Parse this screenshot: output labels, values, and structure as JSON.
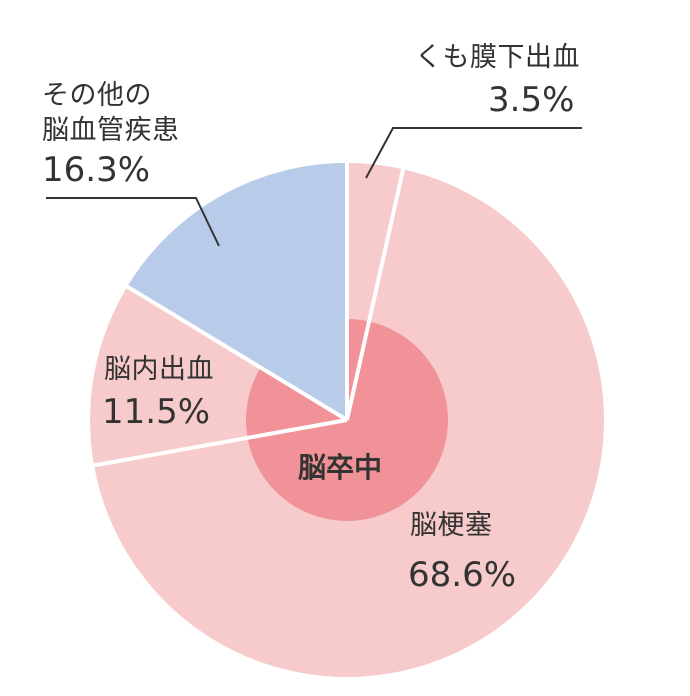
{
  "chart_data": {
    "type": "pie",
    "title": "",
    "inner_label": "脳卒中",
    "start_angle_deg": 0,
    "direction": "clockwise",
    "slices": [
      {
        "label": "くも膜下出血",
        "value": 3.5,
        "display": "3.5%",
        "color": "#f7cbcb"
      },
      {
        "label": "脳梗塞",
        "value": 68.6,
        "display": "68.6%",
        "color": "#f7cbcb"
      },
      {
        "label": "脳内出血",
        "value": 11.5,
        "display": "11.5%",
        "color": "#f7cbcb"
      },
      {
        "label": "その他の脳血管疾患",
        "value": 16.3,
        "display": "16.3%",
        "color": "#b8cce9"
      }
    ],
    "inner_circle_color": "#f09297"
  },
  "labels": {
    "sah_name": "くも膜下出血",
    "sah_value": "3.5%",
    "other_name_line1": "その他の",
    "other_name_line2": "脳血管疾患",
    "other_value": "16.3%",
    "ich_name": "脳内出血",
    "ich_value": "11.5%",
    "infarct_name": "脳梗塞",
    "infarct_value": "68.6%",
    "center": "脳卒中"
  }
}
